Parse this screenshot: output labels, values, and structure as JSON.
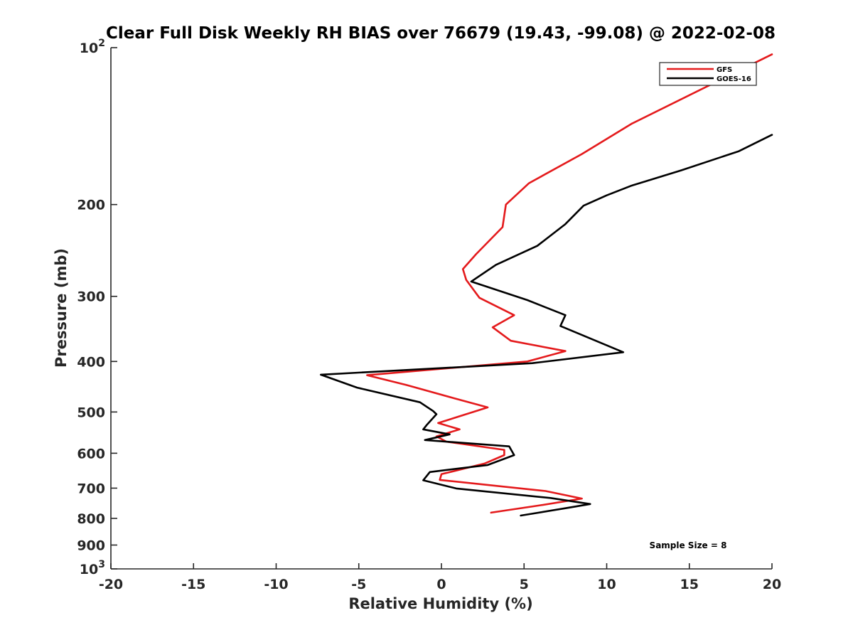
{
  "chart_data": {
    "type": "line",
    "title": "Clear Full Disk Weekly RH BIAS over 76679 (19.43, -99.08) @ 2022-02-08",
    "xlabel": "Relative Humidity (%)",
    "ylabel": "Pressure (mb)",
    "xlim": [
      -20,
      20
    ],
    "ylim": [
      100,
      1000
    ],
    "yscale": "log",
    "y_reversed": true,
    "x_ticks": [
      "-20",
      "-15",
      "-10",
      "-5",
      "0",
      "5",
      "10",
      "15",
      "20"
    ],
    "y_ticks": [
      {
        "value": 100,
        "base": "10",
        "exp": "2"
      },
      {
        "value": 200,
        "label": "200"
      },
      {
        "value": 300,
        "label": "300"
      },
      {
        "value": 400,
        "label": "400"
      },
      {
        "value": 500,
        "label": "500"
      },
      {
        "value": 600,
        "label": "600"
      },
      {
        "value": 700,
        "label": "700"
      },
      {
        "value": 800,
        "label": "800"
      },
      {
        "value": 900,
        "label": "900"
      },
      {
        "value": 1000,
        "base": "10",
        "exp": "3"
      }
    ],
    "grid": false,
    "legend_position": "top-right",
    "annotation": "Sample Size = 8",
    "series": [
      {
        "name": "GFS",
        "color": "#e41a1c",
        "points": [
          [
            20.0,
            103
          ],
          [
            11.5,
            140
          ],
          [
            8.5,
            160
          ],
          [
            5.3,
            182
          ],
          [
            3.9,
            200
          ],
          [
            3.7,
            221
          ],
          [
            2.1,
            249
          ],
          [
            1.3,
            266
          ],
          [
            1.5,
            279
          ],
          [
            2.3,
            302
          ],
          [
            4.4,
            326
          ],
          [
            3.1,
            344
          ],
          [
            4.2,
            365
          ],
          [
            7.5,
            382
          ],
          [
            5.2,
            400
          ],
          [
            -4.5,
            425
          ],
          [
            -2.1,
            444
          ],
          [
            0.7,
            470
          ],
          [
            2.8,
            490
          ],
          [
            -0.2,
            525
          ],
          [
            1.1,
            540
          ],
          [
            -0.3,
            557
          ],
          [
            0.3,
            570
          ],
          [
            3.8,
            591
          ],
          [
            3.8,
            605
          ],
          [
            2.6,
            628
          ],
          [
            0.0,
            658
          ],
          [
            -0.1,
            675
          ],
          [
            6.3,
            709
          ],
          [
            8.5,
            733
          ],
          [
            6.0,
            755
          ],
          [
            3.0,
            780
          ]
        ]
      },
      {
        "name": "GOES-16",
        "color": "#000000",
        "points": [
          [
            20.0,
            147
          ],
          [
            18.0,
            158
          ],
          [
            14.5,
            172
          ],
          [
            11.5,
            184
          ],
          [
            10.0,
            192
          ],
          [
            8.6,
            201
          ],
          [
            7.5,
            218
          ],
          [
            5.8,
            240
          ],
          [
            3.3,
            261
          ],
          [
            1.8,
            281
          ],
          [
            5.2,
            305
          ],
          [
            7.5,
            326
          ],
          [
            7.2,
            342
          ],
          [
            11.0,
            384
          ],
          [
            5.5,
            403
          ],
          [
            -7.3,
            424
          ],
          [
            -5.1,
            449
          ],
          [
            -1.3,
            479
          ],
          [
            -0.5,
            498
          ],
          [
            -0.3,
            505
          ],
          [
            -0.9,
            530
          ],
          [
            -1.1,
            540
          ],
          [
            0.5,
            552
          ],
          [
            -1.0,
            566
          ],
          [
            4.1,
            582
          ],
          [
            4.4,
            605
          ],
          [
            2.8,
            632
          ],
          [
            -0.7,
            652
          ],
          [
            -1.1,
            676
          ],
          [
            0.9,
            701
          ],
          [
            6.6,
            731
          ],
          [
            9.0,
            751
          ],
          [
            7.5,
            765
          ],
          [
            4.8,
            790
          ]
        ]
      }
    ]
  }
}
